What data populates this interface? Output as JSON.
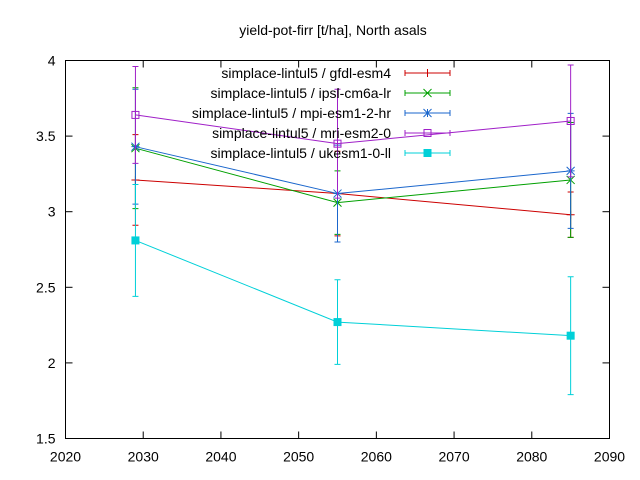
{
  "chart_data": {
    "type": "line",
    "title": "yield-pot-firr [t/ha], North asals",
    "xlabel": "",
    "ylabel": "",
    "xlim": [
      2020,
      2090
    ],
    "ylim": [
      1.5,
      4
    ],
    "xticks": [
      2020,
      2030,
      2040,
      2050,
      2060,
      2070,
      2080,
      2090
    ],
    "yticks": [
      1.5,
      2,
      2.5,
      3,
      3.5,
      4
    ],
    "ytick_labels": [
      "1.5",
      "2",
      "2.5",
      "3",
      "3.5",
      "4"
    ],
    "legend_position": "top-right",
    "grid": false,
    "error_bars": true,
    "series": [
      {
        "name": "simplace-lintul5 / gfdl-esm4",
        "color": "#cc0000",
        "marker": "plus",
        "x": [
          2029,
          2055,
          2085
        ],
        "y": [
          3.21,
          3.12,
          2.98
        ],
        "err": [
          0.3,
          0.28,
          0.15
        ]
      },
      {
        "name": "simplace-lintul5 / ipsl-cm6a-lr",
        "color": "#00a000",
        "marker": "cross",
        "x": [
          2029,
          2055,
          2085
        ],
        "y": [
          3.42,
          3.06,
          3.21
        ],
        "err": [
          0.4,
          0.21,
          0.38
        ]
      },
      {
        "name": "simplace-lintul5 / mpi-esm1-2-hr",
        "color": "#1a66cc",
        "marker": "star",
        "x": [
          2029,
          2055,
          2085
        ],
        "y": [
          3.43,
          3.12,
          3.27
        ],
        "err": [
          0.38,
          0.32,
          0.38
        ]
      },
      {
        "name": "simplace-lintul5 / mri-esm2-0",
        "color": "#a020c8",
        "marker": "square",
        "x": [
          2029,
          2055,
          2085
        ],
        "y": [
          3.64,
          3.45,
          3.6
        ],
        "err": [
          0.32,
          0.36,
          0.37
        ]
      },
      {
        "name": "simplace-lintul5 / ukesm1-0-ll",
        "color": "#00d0d8",
        "marker": "filled-square",
        "x": [
          2029,
          2055,
          2085
        ],
        "y": [
          2.81,
          2.27,
          2.18
        ],
        "err": [
          0.37,
          0.28,
          0.39
        ]
      }
    ]
  }
}
